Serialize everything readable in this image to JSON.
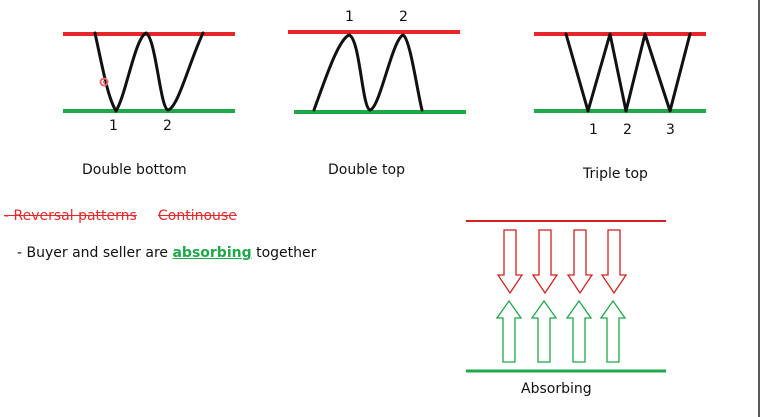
{
  "patterns": {
    "double_bottom": {
      "label": "Double bottom",
      "points": [
        "1",
        "2"
      ]
    },
    "double_top": {
      "label": "Double top",
      "points": [
        "1",
        "2"
      ]
    },
    "triple_top": {
      "label": "Triple top",
      "points": [
        "1",
        "2",
        "3"
      ]
    }
  },
  "notes": {
    "reversal": "- Reversal patterns",
    "continuous": "Continouse",
    "absorbing_prefix": "- Buyer and seller are ",
    "absorbing_word": "absorbing",
    "absorbing_suffix": " together"
  },
  "absorbing_diagram": {
    "label": "Absorbing"
  },
  "colors": {
    "resistance": "#e8262a",
    "support": "#1fa84a",
    "curve": "#111111",
    "highlight": "#1fa84a",
    "strike": "#e8262a"
  }
}
